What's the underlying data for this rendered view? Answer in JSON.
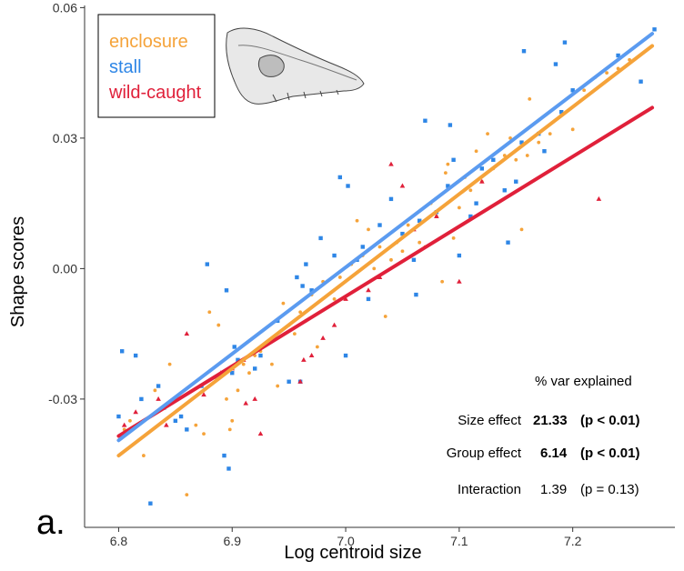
{
  "chart_data": {
    "type": "scatter",
    "title": "",
    "xlabel": "Log centroid size",
    "ylabel": "Shape scores",
    "xlim": [
      6.77,
      7.29
    ],
    "ylim": [
      -0.0595,
      0.0605
    ],
    "x_ticks": [
      {
        "value": 6.8,
        "label": "6.8"
      },
      {
        "value": 6.9,
        "label": "6.9"
      },
      {
        "value": 7.0,
        "label": "7.0"
      },
      {
        "value": 7.1,
        "label": "7.1"
      },
      {
        "value": 7.2,
        "label": "7.2"
      }
    ],
    "y_ticks": [
      {
        "value": -0.03,
        "label": "-0.03"
      },
      {
        "value": 0.0,
        "label": "0.00"
      },
      {
        "value": 0.03,
        "label": "0.03"
      },
      {
        "value": 0.06,
        "label": "0.06"
      }
    ],
    "grid": false,
    "legend_position": "top-left",
    "panel_label": "a.",
    "series": [
      {
        "name": "enclosure",
        "color": "#F5A33A",
        "marker": "circle",
        "fit": {
          "x": [
            6.8,
            7.27
          ],
          "y": [
            -0.043,
            0.0512
          ]
        },
        "points": [
          [
            6.805,
            -0.037
          ],
          [
            6.81,
            -0.035
          ],
          [
            6.822,
            -0.043
          ],
          [
            6.832,
            -0.028
          ],
          [
            6.84,
            -0.032
          ],
          [
            6.845,
            -0.022
          ],
          [
            6.86,
            -0.052
          ],
          [
            6.868,
            -0.036
          ],
          [
            6.875,
            -0.038
          ],
          [
            6.88,
            -0.01
          ],
          [
            6.885,
            -0.025
          ],
          [
            6.888,
            -0.013
          ],
          [
            6.895,
            -0.03
          ],
          [
            6.898,
            -0.037
          ],
          [
            6.9,
            -0.035
          ],
          [
            6.905,
            -0.028
          ],
          [
            6.91,
            -0.022
          ],
          [
            6.915,
            -0.024
          ],
          [
            6.92,
            -0.02
          ],
          [
            6.925,
            -0.019
          ],
          [
            6.93,
            -0.017
          ],
          [
            6.935,
            -0.022
          ],
          [
            6.94,
            -0.027
          ],
          [
            6.945,
            -0.008
          ],
          [
            6.95,
            -0.013
          ],
          [
            6.955,
            -0.015
          ],
          [
            6.96,
            -0.01
          ],
          [
            6.965,
            -0.012
          ],
          [
            6.97,
            -0.006
          ],
          [
            6.975,
            -0.018
          ],
          [
            6.98,
            -0.003
          ],
          [
            6.99,
            -0.007
          ],
          [
            6.995,
            -0.002
          ],
          [
            7.0,
            -0.02
          ],
          [
            7.005,
            0.001
          ],
          [
            7.01,
            0.011
          ],
          [
            7.015,
            0.003
          ],
          [
            7.02,
            0.009
          ],
          [
            7.025,
            0.0
          ],
          [
            7.03,
            0.005
          ],
          [
            7.035,
            -0.011
          ],
          [
            7.04,
            0.002
          ],
          [
            7.045,
            0.006
          ],
          [
            7.05,
            0.004
          ],
          [
            7.055,
            0.01
          ],
          [
            7.06,
            0.009
          ],
          [
            7.065,
            0.006
          ],
          [
            7.07,
            0.005
          ],
          [
            7.075,
            0.015
          ],
          [
            7.08,
            0.012
          ],
          [
            7.085,
            -0.003
          ],
          [
            7.088,
            0.022
          ],
          [
            7.09,
            0.024
          ],
          [
            7.095,
            0.007
          ],
          [
            7.1,
            0.014
          ],
          [
            7.105,
            0.021
          ],
          [
            7.11,
            0.018
          ],
          [
            7.115,
            0.027
          ],
          [
            7.12,
            0.02
          ],
          [
            7.125,
            0.031
          ],
          [
            7.13,
            0.023
          ],
          [
            7.14,
            0.026
          ],
          [
            7.145,
            0.03
          ],
          [
            7.15,
            0.025
          ],
          [
            7.155,
            0.009
          ],
          [
            7.16,
            0.026
          ],
          [
            7.162,
            0.039
          ],
          [
            7.17,
            0.029
          ],
          [
            7.18,
            0.031
          ],
          [
            7.19,
            0.036
          ],
          [
            7.2,
            0.032
          ],
          [
            7.21,
            0.041
          ],
          [
            7.22,
            0.044
          ],
          [
            7.23,
            0.045
          ],
          [
            7.24,
            0.046
          ],
          [
            7.25,
            0.048
          ]
        ]
      },
      {
        "name": "stall",
        "color": "#2E86E6",
        "marker": "square",
        "fit": {
          "x": [
            6.8,
            7.27
          ],
          "y": [
            -0.0395,
            0.054
          ]
        },
        "points": [
          [
            6.8,
            -0.034
          ],
          [
            6.803,
            -0.019
          ],
          [
            6.815,
            -0.02
          ],
          [
            6.82,
            -0.03
          ],
          [
            6.828,
            -0.054
          ],
          [
            6.835,
            -0.027
          ],
          [
            6.84,
            -0.032
          ],
          [
            6.85,
            -0.035
          ],
          [
            6.855,
            -0.034
          ],
          [
            6.86,
            -0.037
          ],
          [
            6.873,
            -0.027
          ],
          [
            6.878,
            0.001
          ],
          [
            6.893,
            -0.043
          ],
          [
            6.895,
            -0.005
          ],
          [
            6.897,
            -0.046
          ],
          [
            6.9,
            -0.024
          ],
          [
            6.902,
            -0.018
          ],
          [
            6.905,
            -0.021
          ],
          [
            6.92,
            -0.023
          ],
          [
            6.925,
            -0.02
          ],
          [
            6.94,
            -0.012
          ],
          [
            6.95,
            -0.026
          ],
          [
            6.957,
            -0.002
          ],
          [
            6.96,
            -0.026
          ],
          [
            6.962,
            -0.004
          ],
          [
            6.965,
            0.001
          ],
          [
            6.97,
            -0.005
          ],
          [
            6.978,
            0.007
          ],
          [
            6.99,
            0.003
          ],
          [
            6.995,
            0.021
          ],
          [
            7.0,
            -0.02
          ],
          [
            7.002,
            0.019
          ],
          [
            7.01,
            0.002
          ],
          [
            7.015,
            0.005
          ],
          [
            7.02,
            -0.007
          ],
          [
            7.03,
            0.01
          ],
          [
            7.04,
            0.016
          ],
          [
            7.05,
            0.008
          ],
          [
            7.06,
            0.002
          ],
          [
            7.062,
            -0.006
          ],
          [
            7.065,
            0.011
          ],
          [
            7.07,
            0.034
          ],
          [
            7.08,
            0.013
          ],
          [
            7.09,
            0.019
          ],
          [
            7.092,
            0.033
          ],
          [
            7.095,
            0.025
          ],
          [
            7.1,
            0.003
          ],
          [
            7.11,
            0.012
          ],
          [
            7.115,
            0.015
          ],
          [
            7.12,
            0.023
          ],
          [
            7.13,
            0.025
          ],
          [
            7.14,
            0.018
          ],
          [
            7.143,
            0.006
          ],
          [
            7.15,
            0.02
          ],
          [
            7.155,
            0.029
          ],
          [
            7.157,
            0.05
          ],
          [
            7.17,
            0.031
          ],
          [
            7.175,
            0.027
          ],
          [
            7.185,
            0.047
          ],
          [
            7.19,
            0.036
          ],
          [
            7.193,
            0.052
          ],
          [
            7.2,
            0.041
          ],
          [
            7.24,
            0.049
          ],
          [
            7.26,
            0.043
          ],
          [
            7.272,
            0.055
          ]
        ]
      },
      {
        "name": "wild-caught",
        "color": "#E0203A",
        "marker": "triangle",
        "fit": {
          "x": [
            6.8,
            7.27
          ],
          "y": [
            -0.0385,
            0.037
          ]
        },
        "points": [
          [
            6.805,
            -0.036
          ],
          [
            6.815,
            -0.033
          ],
          [
            6.835,
            -0.03
          ],
          [
            6.842,
            -0.036
          ],
          [
            6.86,
            -0.015
          ],
          [
            6.875,
            -0.029
          ],
          [
            6.89,
            -0.024
          ],
          [
            6.9,
            -0.023
          ],
          [
            6.91,
            -0.021
          ],
          [
            6.912,
            -0.031
          ],
          [
            6.92,
            -0.03
          ],
          [
            6.925,
            -0.038
          ],
          [
            6.96,
            -0.026
          ],
          [
            6.963,
            -0.021
          ],
          [
            6.97,
            -0.02
          ],
          [
            6.98,
            -0.016
          ],
          [
            6.99,
            -0.013
          ],
          [
            7.0,
            -0.007
          ],
          [
            7.02,
            -0.005
          ],
          [
            7.03,
            -0.002
          ],
          [
            7.04,
            0.024
          ],
          [
            7.05,
            0.019
          ],
          [
            7.06,
            0.009
          ],
          [
            7.08,
            0.012
          ],
          [
            7.1,
            -0.003
          ],
          [
            7.12,
            0.02
          ],
          [
            7.223,
            0.016
          ]
        ]
      }
    ],
    "annotations": {
      "header": "% var explained",
      "rows": [
        {
          "label": "Size effect",
          "value": "21.33",
          "p": "(p < 0.01)",
          "bold": true
        },
        {
          "label": "Group effect",
          "value": "6.14",
          "p": "(p < 0.01)",
          "bold": true
        },
        {
          "label": "Interaction",
          "value": "1.39",
          "p": "(p = 0.13)",
          "bold": false
        }
      ]
    }
  }
}
